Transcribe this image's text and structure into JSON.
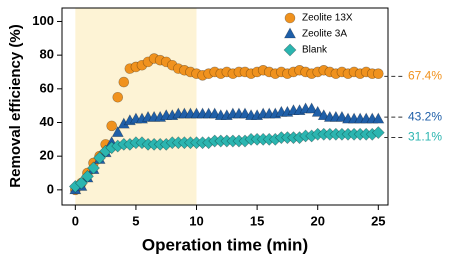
{
  "chart_data": {
    "type": "scatter",
    "xlabel": "Operation time (min)",
    "ylabel": "Removal efficiency (%)",
    "xlim": [
      -1.1,
      25.8
    ],
    "ylim": [
      -9,
      108
    ],
    "xticks": [
      0,
      5,
      10,
      15,
      20,
      25
    ],
    "yticks": [
      0,
      20,
      40,
      60,
      80,
      100
    ],
    "legend": "upper right",
    "highlight": {
      "x": [
        0,
        10
      ],
      "color": "#fdf3d5"
    },
    "x": [
      0,
      0.5,
      1,
      1.5,
      2,
      2.5,
      3,
      3.5,
      4,
      4.5,
      5,
      5.5,
      6,
      6.5,
      7,
      7.5,
      8,
      8.5,
      9,
      9.5,
      10,
      10.5,
      11,
      11.5,
      12,
      12.5,
      13,
      13.5,
      14,
      14.5,
      15,
      15.5,
      16,
      16.5,
      17,
      17.5,
      18,
      18.5,
      19,
      19.5,
      20,
      20.5,
      21,
      21.5,
      22,
      22.5,
      23,
      23.5,
      24,
      24.5,
      25
    ],
    "series": [
      {
        "name": "Zeolite 13X",
        "marker": "circle",
        "color": "#f0921e",
        "values": [
          0,
          4,
          10,
          16,
          20,
          27,
          38,
          55,
          64,
          72,
          73,
          74,
          76,
          78,
          77,
          76,
          74,
          72,
          71,
          70,
          69,
          68,
          69,
          70,
          69,
          70,
          69,
          70,
          70,
          69,
          70,
          71,
          70,
          69,
          70,
          69,
          70,
          71,
          70,
          69,
          70,
          71,
          70,
          69,
          70,
          69,
          70,
          69,
          70,
          69,
          69
        ]
      },
      {
        "name": "Zeolite 3A",
        "marker": "triangle",
        "color": "#1f5fa8",
        "values": [
          0,
          2,
          7,
          12,
          18,
          22,
          28,
          34,
          39,
          41,
          42,
          42,
          43,
          43,
          43,
          44,
          44,
          45,
          45,
          45,
          45,
          45,
          45,
          45,
          44,
          44,
          45,
          45,
          45,
          44,
          44,
          45,
          45,
          45,
          46,
          46,
          47,
          47,
          48,
          48,
          46,
          44,
          43,
          43,
          43,
          42,
          42,
          42,
          42,
          42,
          42
        ]
      },
      {
        "name": "Blank",
        "marker": "diamond",
        "color": "#2bb5b0",
        "values": [
          2,
          4,
          8,
          13,
          19,
          23,
          25,
          26,
          27,
          27,
          28,
          28,
          27,
          27,
          27,
          27,
          28,
          28,
          28,
          28,
          28,
          28,
          28,
          29,
          29,
          29,
          29,
          29,
          29,
          30,
          30,
          30,
          30,
          30,
          31,
          31,
          31,
          31,
          32,
          32,
          33,
          33,
          33,
          33,
          33,
          33,
          33,
          33,
          33,
          33,
          34
        ]
      }
    ],
    "annotations": [
      {
        "value": 67.4,
        "label": "67.4%",
        "color": "#f0921e"
      },
      {
        "value": 43.2,
        "label": "43.2%",
        "color": "#1f5fa8"
      },
      {
        "value": 31.1,
        "label": "31.1%",
        "color": "#2bb5b0"
      }
    ]
  }
}
